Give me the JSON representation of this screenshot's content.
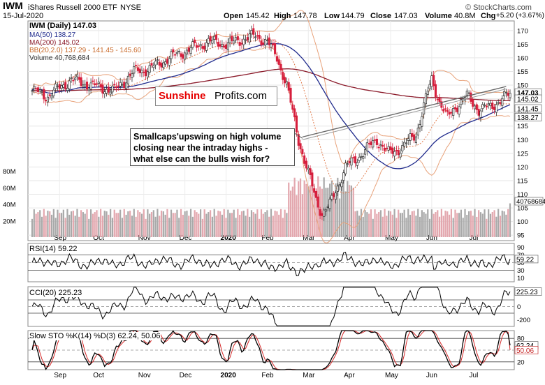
{
  "header": {
    "ticker": "IWM",
    "name": "iShares Russell 2000 ETF",
    "exchange": "NYSE",
    "date": "15-Jul-2020",
    "source": "© StockCharts.com",
    "open_label": "Open",
    "open": "145.42",
    "high_label": "High",
    "high": "147.78",
    "low_label": "Low",
    "low": "144.79",
    "close_label": "Close",
    "close": "147.03",
    "volume_label": "Volume",
    "volume": "40.8M",
    "chg_label": "Chg",
    "chg": "+5.20 (+3.67%)"
  },
  "legend": {
    "main": "IWM (Daily) 147.03",
    "ma50": "MA(50) 138.27",
    "ma200": "MA(200) 145.02",
    "bb": "BB(20,2.0) 137.29 - 141.45 - 145.60",
    "vol": "Volume 40,768,684"
  },
  "colors": {
    "up": "#2b2b2b",
    "down": "#d61e3c",
    "ma50": "#1f2a8c",
    "ma200": "#8b1a2a",
    "bb": "#e8a27a",
    "bbmid": "#e07a4a",
    "volup": "#a9a9a9",
    "voldown": "#e3a7ae",
    "osc": "#000000",
    "stoD": "#d62a2a",
    "posfill": "#3f6b3f",
    "negfill": "#7a3a3a"
  },
  "watermark": {
    "brand_a": "Sunshine",
    "brand_b": "Profits.com"
  },
  "annotation": {
    "lines": [
      "Smallcaps'upswing on high volume",
      "closing near the intraday highs -",
      "what else can the bulls wish for?"
    ]
  },
  "chart_data": [
    {
      "type": "candlestick",
      "title": "IWM (Daily) 147.03",
      "ylim": [
        93,
        172
      ],
      "price_ticks": [
        95,
        100,
        105,
        110,
        115,
        120,
        125,
        130,
        135,
        140,
        145,
        150,
        155,
        160,
        165,
        170
      ],
      "price_badges": [
        "147.03",
        "145.02",
        "141.45",
        "138.27"
      ],
      "x_labels": [
        "Sep",
        "Oct",
        "Nov",
        "Dec",
        "2020",
        "Feb",
        "Mar",
        "Apr",
        "May",
        "Jun",
        "Jul"
      ],
      "keypoints": [
        [
          0,
          148
        ],
        [
          8,
          146
        ],
        [
          20,
          152
        ],
        [
          30,
          150
        ],
        [
          42,
          148
        ],
        [
          52,
          155
        ],
        [
          60,
          156
        ],
        [
          70,
          160
        ],
        [
          80,
          163
        ],
        [
          90,
          166
        ],
        [
          100,
          165
        ],
        [
          108,
          167
        ],
        [
          114,
          168
        ],
        [
          120,
          166
        ],
        [
          125,
          160
        ],
        [
          130,
          150
        ],
        [
          136,
          130
        ],
        [
          140,
          120
        ],
        [
          145,
          108
        ],
        [
          148,
          103
        ],
        [
          152,
          106
        ],
        [
          156,
          113
        ],
        [
          160,
          120
        ],
        [
          164,
          122
        ],
        [
          170,
          126
        ],
        [
          176,
          130
        ],
        [
          182,
          125
        ],
        [
          186,
          126
        ],
        [
          190,
          128
        ],
        [
          196,
          132
        ],
        [
          201,
          145
        ],
        [
          204,
          152
        ],
        [
          208,
          144
        ],
        [
          212,
          138
        ],
        [
          216,
          142
        ],
        [
          222,
          146
        ],
        [
          228,
          141
        ],
        [
          234,
          142
        ],
        [
          240,
          145
        ],
        [
          245,
          147
        ]
      ],
      "series": [
        {
          "name": "MA(50)",
          "value": 138.27
        },
        {
          "name": "MA(200)",
          "value": 145.02
        },
        {
          "name": "BB(20,2.0)",
          "lower": 137.29,
          "middle": 141.45,
          "upper": 145.6
        }
      ]
    },
    {
      "type": "bar",
      "title": "Volume 40,768,684",
      "y_ticks": [
        "20M",
        "40M",
        "60M",
        "80M"
      ],
      "last_value": "40768684",
      "badge": "40768684"
    },
    {
      "type": "line",
      "title": "RSI(14) 59.22",
      "ylim": [
        0,
        100
      ],
      "y_ticks": [
        90,
        70,
        50,
        30,
        10
      ],
      "last_value": "59.22"
    },
    {
      "type": "line",
      "title": "CCI(20) 225.23",
      "ylim": [
        -300,
        300
      ],
      "y_ticks": [
        200,
        0,
        -200
      ],
      "last_value": "225.23"
    },
    {
      "type": "line",
      "title": "Slow STO %K(14) %D(3) 62.24, 50.06",
      "series": [
        {
          "name": "%K(14)",
          "last": 62.24
        },
        {
          "name": "%D(3)",
          "last": 50.06
        }
      ],
      "ylim": [
        0,
        100
      ],
      "y_ticks": [
        80,
        50,
        20
      ],
      "k_badge": "62.24",
      "d_badge": "50.06"
    }
  ]
}
